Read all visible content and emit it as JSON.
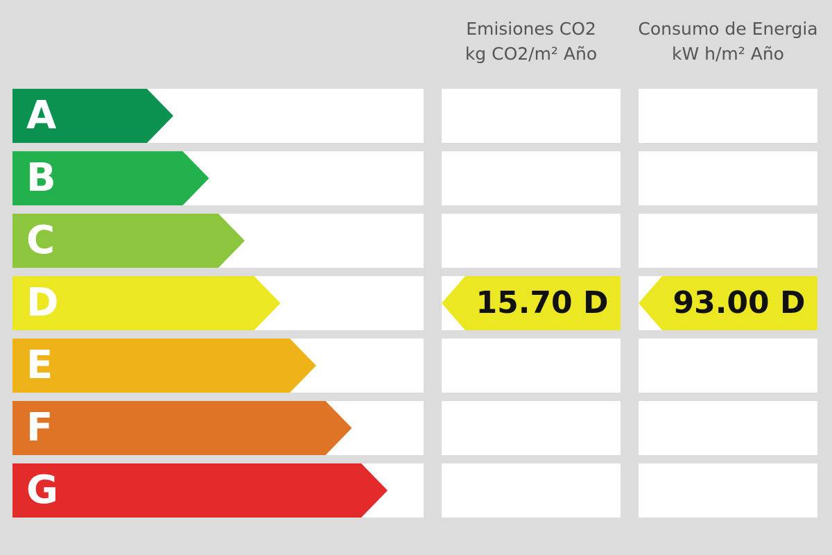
{
  "grades": [
    {
      "letter": "A",
      "color": "#0b9150"
    },
    {
      "letter": "B",
      "color": "#22b14c"
    },
    {
      "letter": "C",
      "color": "#8cc63e"
    },
    {
      "letter": "D",
      "color": "#ebe723"
    },
    {
      "letter": "E",
      "color": "#edb319"
    },
    {
      "letter": "F",
      "color": "#df7427"
    },
    {
      "letter": "G",
      "color": "#e22b2a"
    }
  ],
  "columns": [
    {
      "title": "Emisiones CO2",
      "unit": "kg CO2/m² Año",
      "value": "15.70",
      "rating": "D"
    },
    {
      "title": "Consumo de Energia",
      "unit": "kW h/m² Año",
      "value": "93.00",
      "rating": "D"
    }
  ]
}
